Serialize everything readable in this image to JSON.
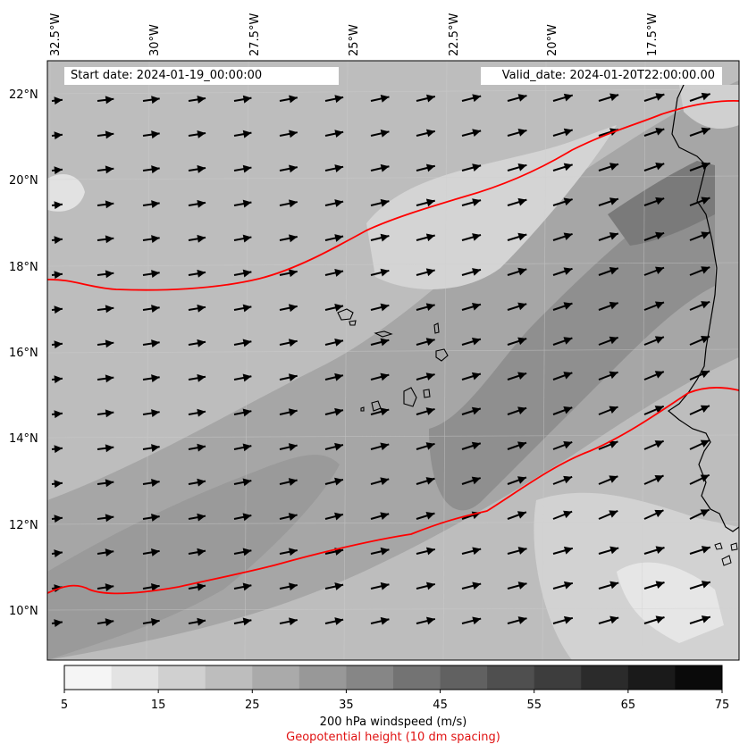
{
  "map": {
    "start_date": "Start date: 2024-01-19_00:00:00",
    "valid_date": "Valid_date: 2024-01-20T22:00:00.00",
    "lon_labels": [
      "32.5°W",
      "30°W",
      "27.5°W",
      "25°W",
      "22.5°W",
      "20°W",
      "17.5°W"
    ],
    "lat_labels": [
      "22°N",
      "20°N",
      "18°N",
      "16°N",
      "14°N",
      "12°N",
      "10°N"
    ],
    "extent": {
      "lon_min": -33,
      "lon_max": -15.5,
      "lat_min": 8.9,
      "lat_max": 22.8
    },
    "colors": {
      "contour_line": "#ff0000",
      "coastline": "#000000",
      "arrows": "#000000"
    },
    "fields": [
      "200 hPa windspeed (m/s)",
      "Geopotential height (10 dm spacing)"
    ]
  },
  "colorbar": {
    "ticks": [
      "5",
      "15",
      "25",
      "35",
      "45",
      "55",
      "65",
      "75"
    ],
    "label": "200 hPa windspeed (m/s)",
    "sublabel": "Geopotential height (10 dm spacing)",
    "levels": [
      5,
      10,
      15,
      20,
      25,
      30,
      35,
      40,
      45,
      50,
      55,
      60,
      65,
      70,
      75
    ],
    "colors": [
      "#f5f5f5",
      "#e3e3e3",
      "#d0d0d0",
      "#bdbdbd",
      "#aaaaaa",
      "#989898",
      "#868686",
      "#737373",
      "#616161",
      "#4f4f4f",
      "#3d3d3d",
      "#2b2b2b",
      "#1a1a1a",
      "#0a0a0a"
    ]
  }
}
